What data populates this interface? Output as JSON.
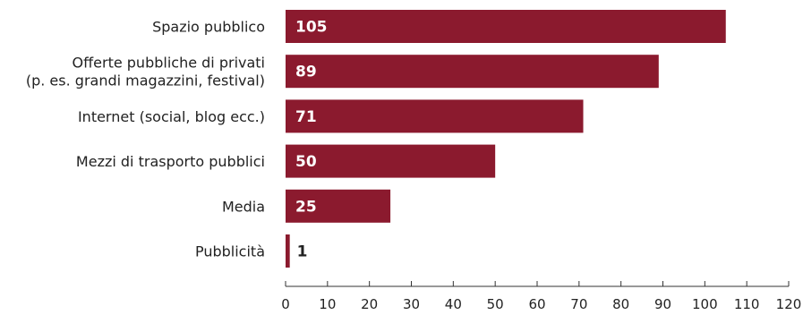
{
  "chart_data": {
    "type": "bar",
    "orientation": "horizontal",
    "categories": [
      [
        "Spazio pubblico"
      ],
      [
        "Offerte pubbliche di privati",
        "(p. es. grandi magazzini, festival)"
      ],
      [
        "Internet (social, blog ecc.)"
      ],
      [
        "Mezzi di trasporto pubblici"
      ],
      [
        "Media"
      ],
      [
        "Pubblicità"
      ]
    ],
    "values": [
      105,
      89,
      71,
      50,
      25,
      1
    ],
    "xlim": [
      0,
      120
    ],
    "xticks": [
      0,
      10,
      20,
      30,
      40,
      50,
      60,
      70,
      80,
      90,
      100,
      110,
      120
    ],
    "title": "",
    "xlabel": "",
    "ylabel": "",
    "grid": false,
    "bar_color": "#8b1a2e",
    "value_label_color_inside": "#ffffff",
    "value_label_color_outside": "#222222"
  }
}
